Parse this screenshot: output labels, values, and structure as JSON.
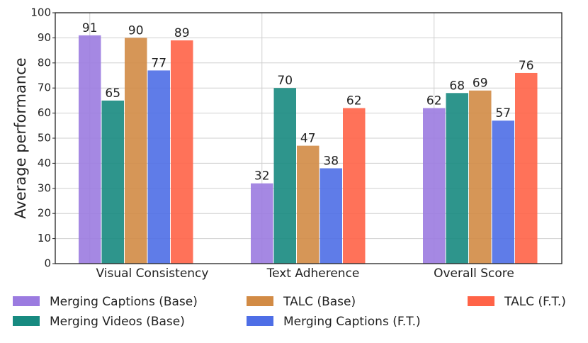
{
  "chart_data": {
    "type": "bar",
    "y_label": "Average performance",
    "categories": [
      "Visual Consistency",
      "Text Adherence",
      "Overall Score"
    ],
    "series": [
      {
        "name": "Merging Captions (Base)",
        "color": "#9b7be0",
        "values": [
          91,
          32,
          62
        ]
      },
      {
        "name": "Merging Videos (Base)",
        "color": "#178a80",
        "values": [
          65,
          70,
          68
        ]
      },
      {
        "name": "TALC (Base)",
        "color": "#d28b45",
        "values": [
          90,
          47,
          69
        ]
      },
      {
        "name": "Merging Captions (F.T.)",
        "color": "#4e6ee6",
        "values": [
          77,
          38,
          57
        ]
      },
      {
        "name": "TALC (F.T.)",
        "color": "#ff6347",
        "values": [
          89,
          62,
          76
        ]
      }
    ],
    "ylim": [
      0,
      100
    ],
    "yticks": [
      0,
      10,
      20,
      30,
      40,
      50,
      60,
      70,
      80,
      90,
      100
    ],
    "grid": true
  }
}
